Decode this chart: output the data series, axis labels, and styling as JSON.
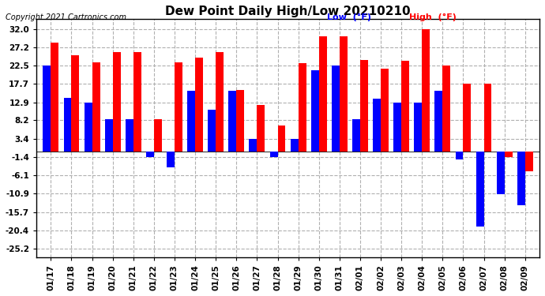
{
  "title": "Dew Point Daily High/Low 20210210",
  "copyright": "Copyright 2021 Cartronics.com",
  "legend_low": "Low  (°F)",
  "legend_high": "High  (°F)",
  "dates": [
    "01/17",
    "01/18",
    "01/19",
    "01/20",
    "01/21",
    "01/22",
    "01/23",
    "01/24",
    "01/25",
    "01/26",
    "01/27",
    "01/28",
    "01/29",
    "01/30",
    "01/31",
    "02/01",
    "02/02",
    "02/03",
    "02/04",
    "02/05",
    "02/06",
    "02/07",
    "02/08",
    "02/09"
  ],
  "high": [
    28.4,
    25.2,
    23.4,
    26.0,
    26.0,
    8.6,
    23.4,
    24.5,
    26.0,
    16.2,
    12.2,
    6.8,
    23.0,
    30.0,
    30.0,
    24.0,
    21.6,
    23.8,
    32.0,
    22.5,
    17.7,
    17.7,
    -1.4,
    -5.0
  ],
  "low": [
    22.5,
    14.0,
    12.9,
    8.6,
    8.6,
    -1.4,
    -4.0,
    15.8,
    11.0,
    15.8,
    3.4,
    -1.4,
    3.4,
    21.2,
    22.5,
    8.6,
    13.8,
    12.9,
    12.9,
    15.8,
    -2.0,
    -19.4,
    -11.0,
    -14.0
  ],
  "high_color": "#ff0000",
  "low_color": "#0000ff",
  "background_color": "#ffffff",
  "grid_color": "#b0b0b0",
  "yticks": [
    32.0,
    27.2,
    22.5,
    17.7,
    12.9,
    8.2,
    3.4,
    -1.4,
    -6.1,
    -10.9,
    -15.7,
    -20.4,
    -25.2
  ],
  "ylim": [
    -27.5,
    34.5
  ],
  "figsize": [
    6.9,
    3.75
  ],
  "dpi": 100
}
